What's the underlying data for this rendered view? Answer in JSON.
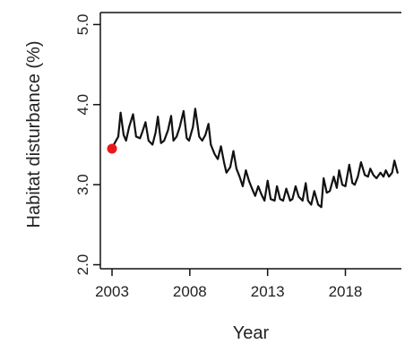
{
  "chart_data": {
    "type": "line",
    "title": "",
    "xlabel": "Year",
    "ylabel": "Habitat disturbance (%)",
    "xlim": [
      2002.25,
      2021.6
    ],
    "ylim": [
      1.95,
      5.15
    ],
    "x_ticks": [
      {
        "value": 2003,
        "label": "2003"
      },
      {
        "value": 2008,
        "label": "2008"
      },
      {
        "value": 2013,
        "label": "2013"
      },
      {
        "value": 2018,
        "label": "2018"
      }
    ],
    "y_ticks": [
      {
        "value": 2.0,
        "label": "2.0"
      },
      {
        "value": 3.0,
        "label": "3.0"
      },
      {
        "value": 4.0,
        "label": "4.0"
      },
      {
        "value": 5.0,
        "label": "5.0"
      }
    ],
    "grid": false,
    "legend": "none",
    "colors": {
      "line": "#111111",
      "marker": "#e8191c",
      "axis": "#111111"
    },
    "series": [
      {
        "x": [
          2003.0,
          2003.2,
          2003.4,
          2003.55,
          2003.75,
          2003.9,
          2004.1,
          2004.35,
          2004.55,
          2004.8,
          2004.95,
          2005.15,
          2005.35,
          2005.6,
          2005.8,
          2005.95,
          2006.15,
          2006.35,
          2006.6,
          2006.8,
          2006.95,
          2007.15,
          2007.35,
          2007.6,
          2007.8,
          2007.95,
          2008.2,
          2008.35,
          2008.6,
          2008.8,
          2009.0,
          2009.2,
          2009.35,
          2009.6,
          2009.8,
          2010.0,
          2010.2,
          2010.35,
          2010.6,
          2010.8,
          2011.0,
          2011.2,
          2011.4,
          2011.6,
          2011.8,
          2012.0,
          2012.2,
          2012.4,
          2012.6,
          2012.8,
          2013.0,
          2013.2,
          2013.45,
          2013.6,
          2013.8,
          2014.0,
          2014.2,
          2014.45,
          2014.6,
          2014.8,
          2015.0,
          2015.25,
          2015.45,
          2015.6,
          2015.8,
          2016.0,
          2016.25,
          2016.45,
          2016.6,
          2016.8,
          2017.0,
          2017.25,
          2017.45,
          2017.6,
          2017.8,
          2018.0,
          2018.25,
          2018.45,
          2018.6,
          2018.8,
          2019.0,
          2019.25,
          2019.45,
          2019.6,
          2019.8,
          2020.0,
          2020.25,
          2020.45,
          2020.6,
          2020.8,
          2021.0,
          2021.15,
          2021.35
        ],
        "values": [
          3.46,
          3.53,
          3.6,
          3.9,
          3.62,
          3.55,
          3.72,
          3.88,
          3.6,
          3.58,
          3.66,
          3.78,
          3.55,
          3.5,
          3.65,
          3.85,
          3.52,
          3.55,
          3.68,
          3.86,
          3.55,
          3.6,
          3.72,
          3.92,
          3.58,
          3.55,
          3.72,
          3.95,
          3.6,
          3.55,
          3.62,
          3.76,
          3.5,
          3.38,
          3.32,
          3.48,
          3.28,
          3.15,
          3.22,
          3.42,
          3.2,
          3.1,
          2.98,
          3.18,
          3.05,
          2.95,
          2.86,
          2.98,
          2.88,
          2.8,
          3.05,
          2.82,
          2.8,
          2.98,
          2.82,
          2.8,
          2.95,
          2.8,
          2.82,
          2.98,
          2.85,
          2.8,
          3.02,
          2.8,
          2.75,
          2.92,
          2.75,
          2.72,
          3.08,
          2.9,
          2.92,
          3.1,
          2.96,
          3.18,
          3.0,
          2.98,
          3.25,
          3.02,
          3.0,
          3.1,
          3.28,
          3.12,
          3.1,
          3.2,
          3.12,
          3.08,
          3.15,
          3.1,
          3.18,
          3.1,
          3.15,
          3.3,
          3.15
        ]
      }
    ],
    "highlight_point": {
      "x": 2003.0,
      "y": 3.45
    }
  }
}
